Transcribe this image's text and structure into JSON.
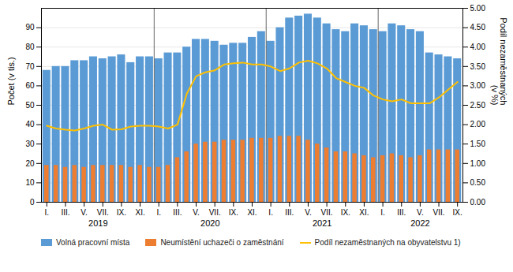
{
  "chart_data": {
    "type": "bar",
    "ylabel": "Počet (v tis.)",
    "y2label": "Podíl nezaměstnaných\n(v %)",
    "categories": [
      "I.",
      null,
      "III.",
      null,
      "V.",
      null,
      "VII.",
      null,
      "IX.",
      null,
      "XI.",
      null,
      "I.",
      null,
      "III.",
      null,
      "V.",
      null,
      "VII.",
      null,
      "IX.",
      null,
      "XI.",
      null,
      "I.",
      null,
      "III.",
      null,
      "V.",
      null,
      "VII.",
      null,
      "IX.",
      null,
      "XI.",
      null,
      "I.",
      null,
      "III.",
      null,
      "V.",
      null,
      "VII.",
      null,
      "IX."
    ],
    "groups": [
      {
        "label": "2019",
        "size": 12
      },
      {
        "label": "2020",
        "size": 12
      },
      {
        "label": "2021",
        "size": 12
      },
      {
        "label": "2022",
        "size": 9
      }
    ],
    "series": [
      {
        "name": "Volná pracovní místa",
        "type": "bar",
        "color": "#5B9BD5",
        "values": [
          68,
          70,
          70,
          73,
          73,
          75,
          74,
          75,
          76,
          72,
          75,
          75,
          74,
          77,
          77,
          80,
          84,
          84,
          83,
          81,
          82,
          82,
          85,
          88,
          83,
          90,
          95,
          96,
          97,
          95,
          92,
          89,
          88,
          92,
          91,
          89,
          88,
          92,
          91,
          89,
          88,
          77,
          76,
          75,
          74
        ]
      },
      {
        "name": "Neumístění uchazeči o zaměstnání",
        "type": "bar",
        "color": "#ED7D31",
        "values": [
          19,
          19,
          18,
          19,
          18,
          19,
          19,
          19,
          19,
          18,
          19,
          18,
          18,
          19,
          23,
          26,
          30,
          31,
          31,
          32,
          32,
          32,
          33,
          33,
          33,
          34,
          34,
          34,
          32,
          30,
          28,
          26,
          26,
          25,
          24,
          23,
          24,
          25,
          24,
          23,
          24,
          27,
          27,
          27,
          27
        ]
      },
      {
        "name": "Podíl nezaměstnaných na obyvatelstvu 1)",
        "type": "line",
        "axis": "y2",
        "color": "#FFC000",
        "values": [
          1.97,
          1.9,
          1.87,
          1.85,
          1.9,
          1.97,
          2.0,
          1.87,
          1.88,
          1.95,
          1.97,
          1.97,
          1.95,
          1.9,
          2.0,
          2.8,
          3.25,
          3.35,
          3.4,
          3.55,
          3.58,
          3.6,
          3.55,
          3.55,
          3.5,
          3.38,
          3.45,
          3.6,
          3.65,
          3.58,
          3.45,
          3.2,
          3.1,
          3.0,
          2.95,
          2.75,
          2.65,
          2.6,
          2.65,
          2.55,
          2.55,
          2.55,
          2.7,
          2.9,
          3.1
        ]
      }
    ],
    "ylim": [
      0,
      100
    ],
    "yticks": [
      0,
      10,
      20,
      30,
      40,
      50,
      60,
      70,
      80,
      90
    ],
    "y2lim": [
      0,
      5
    ],
    "y2ticks": [
      {
        "value": 0,
        "label": "0.00"
      },
      {
        "value": 0.5,
        "label": "0.50"
      },
      {
        "value": 1,
        "label": "1.00"
      },
      {
        "value": 1.5,
        "label": "1.50"
      },
      {
        "value": 2,
        "label": "2.00"
      },
      {
        "value": 2.5,
        "label": "2.50"
      },
      {
        "value": 3,
        "label": "3.00"
      },
      {
        "value": 3.5,
        "label": "3.50"
      },
      {
        "value": 4,
        "label": "4.00"
      },
      {
        "value": 4.5,
        "label": "4.50"
      },
      {
        "value": 5,
        "label": "5.00"
      }
    ],
    "grid": true,
    "legend": "bottom"
  }
}
